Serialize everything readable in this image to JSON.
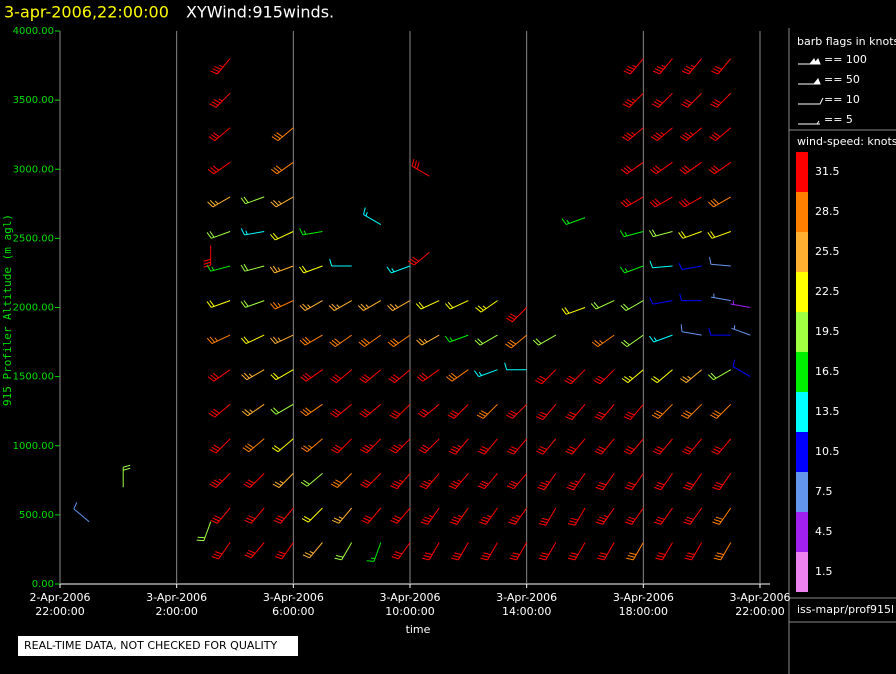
{
  "chart_data": {
    "type": "wind-barb",
    "title": "3-apr-2006,22:00:00",
    "subtitle": "XYWind:915winds.",
    "y_label": "915 Profiler Altitude (m agl)",
    "x_label": "time",
    "note": "REAL-TIME DATA, NOT CHECKED FOR QUALITY",
    "source": "iss-mapr/prof915l",
    "ylim": [
      0,
      4000
    ],
    "yticks": [
      {
        "value": 0,
        "label": "0.00"
      },
      {
        "value": 500,
        "label": "500.00"
      },
      {
        "value": 1000,
        "label": "1000.00"
      },
      {
        "value": 1500,
        "label": "1500.00"
      },
      {
        "value": 2000,
        "label": "2000.00"
      },
      {
        "value": 2500,
        "label": "2500.00"
      },
      {
        "value": 3000,
        "label": "3000.00"
      },
      {
        "value": 3500,
        "label": "3500.00"
      },
      {
        "value": 4000,
        "label": "4000.00"
      }
    ],
    "xlim": [
      "2006-04-02T22:00:00Z",
      "2006-04-03T22:00:00Z"
    ],
    "xticks": [
      {
        "value": "2006-04-02T22:00:00Z",
        "label": [
          "2-Apr-2006",
          "22:00:00"
        ]
      },
      {
        "value": "2006-04-03T02:00:00Z",
        "label": [
          "3-Apr-2006",
          "2:00:00"
        ]
      },
      {
        "value": "2006-04-03T06:00:00Z",
        "label": [
          "3-Apr-2006",
          "6:00:00"
        ]
      },
      {
        "value": "2006-04-03T10:00:00Z",
        "label": [
          "3-Apr-2006",
          "10:00:00"
        ]
      },
      {
        "value": "2006-04-03T14:00:00Z",
        "label": [
          "3-Apr-2006",
          "14:00:00"
        ]
      },
      {
        "value": "2006-04-03T18:00:00Z",
        "label": [
          "3-Apr-2006",
          "18:00:00"
        ]
      },
      {
        "value": "2006-04-03T22:00:00Z",
        "label": [
          "3-Apr-2006",
          "22:00:00"
        ]
      }
    ],
    "grid": true,
    "barb_legend": {
      "title": "barb flags in knots",
      "items": [
        "== 100",
        "== 50",
        "== 10",
        "== 5"
      ]
    },
    "colorbar": {
      "title": "wind-speed: knots",
      "levels": [
        31.5,
        28.5,
        25.5,
        22.5,
        19.5,
        16.5,
        13.5,
        10.5,
        7.5,
        4.5,
        1.5
      ],
      "colors": [
        "#ff0000",
        "#ff8000",
        "#ffb030",
        "#ffff00",
        "#a0ff40",
        "#00ee00",
        "#00ffff",
        "#0000ff",
        "#6495ed",
        "#a020f0",
        "#ee82ee"
      ]
    },
    "profiles": [
      {
        "time": "2006-04-02T23:00:00Z",
        "barbs": [
          [
            450,
            8,
            310
          ]
        ]
      },
      {
        "time": "2006-04-03T00:10:00Z",
        "barbs": [
          [
            700,
            19,
            0
          ]
        ]
      },
      {
        "time": "2006-04-03T03:10:00Z",
        "barbs": [
          [
            450,
            20,
            200
          ],
          [
            2450,
            31,
            180
          ]
        ]
      },
      {
        "time": "2006-04-03T03:50:00Z",
        "barbs": [
          [
            300,
            32,
            215
          ],
          [
            550,
            31,
            220
          ],
          [
            800,
            33,
            225
          ],
          [
            1050,
            31,
            225
          ],
          [
            1300,
            30,
            230
          ],
          [
            1550,
            31,
            235
          ],
          [
            1800,
            27,
            245
          ],
          [
            2050,
            22,
            250
          ],
          [
            2300,
            17,
            255
          ],
          [
            2550,
            20,
            250
          ],
          [
            2800,
            26,
            240
          ],
          [
            3050,
            30,
            235
          ],
          [
            3300,
            32,
            230
          ],
          [
            3550,
            33,
            225
          ],
          [
            3800,
            34,
            220
          ]
        ]
      },
      {
        "time": "2006-04-03T05:00:00Z",
        "barbs": [
          [
            300,
            31,
            220
          ],
          [
            550,
            32,
            220
          ],
          [
            800,
            30,
            225
          ],
          [
            1050,
            28,
            230
          ],
          [
            1300,
            26,
            235
          ],
          [
            1550,
            24,
            240
          ],
          [
            1800,
            22,
            245
          ],
          [
            2050,
            20,
            250
          ],
          [
            2300,
            18,
            255
          ],
          [
            2550,
            14,
            260
          ],
          [
            2800,
            18,
            250
          ]
        ]
      },
      {
        "time": "2006-04-03T06:00:00Z",
        "barbs": [
          [
            300,
            32,
            215
          ],
          [
            550,
            30,
            220
          ],
          [
            800,
            26,
            225
          ],
          [
            1050,
            21,
            230
          ],
          [
            1300,
            18,
            240
          ],
          [
            1550,
            22,
            240
          ],
          [
            1800,
            25,
            245
          ],
          [
            2050,
            27,
            245
          ],
          [
            2300,
            24,
            250
          ],
          [
            2550,
            22,
            245
          ],
          [
            2800,
            26,
            240
          ],
          [
            3050,
            28,
            235
          ],
          [
            3300,
            29,
            230
          ]
        ]
      },
      {
        "time": "2006-04-03T07:00:00Z",
        "barbs": [
          [
            300,
            25,
            220
          ],
          [
            550,
            22,
            225
          ],
          [
            800,
            18,
            230
          ],
          [
            1050,
            27,
            230
          ],
          [
            1300,
            29,
            235
          ],
          [
            1550,
            30,
            235
          ],
          [
            1800,
            28,
            240
          ],
          [
            2050,
            26,
            240
          ],
          [
            2300,
            21,
            250
          ],
          [
            2550,
            16,
            260
          ]
        ]
      },
      {
        "time": "2006-04-03T08:00:00Z",
        "barbs": [
          [
            300,
            20,
            210
          ],
          [
            550,
            26,
            220
          ],
          [
            800,
            29,
            225
          ],
          [
            1050,
            31,
            225
          ],
          [
            1300,
            31,
            230
          ],
          [
            1550,
            30,
            230
          ],
          [
            1800,
            28,
            235
          ],
          [
            2050,
            25,
            240
          ],
          [
            2300,
            12,
            270
          ]
        ]
      },
      {
        "time": "2006-04-03T09:00:00Z",
        "barbs": [
          [
            300,
            16,
            200
          ],
          [
            550,
            31,
            220
          ],
          [
            800,
            32,
            225
          ],
          [
            1050,
            33,
            225
          ],
          [
            1300,
            32,
            230
          ],
          [
            1550,
            31,
            230
          ],
          [
            1800,
            29,
            235
          ],
          [
            2050,
            26,
            240
          ],
          [
            2600,
            13,
            300
          ]
        ]
      },
      {
        "time": "2006-04-03T10:00:00Z",
        "barbs": [
          [
            300,
            31,
            215
          ],
          [
            550,
            32,
            220
          ],
          [
            800,
            33,
            220
          ],
          [
            1050,
            33,
            225
          ],
          [
            1300,
            32,
            225
          ],
          [
            1550,
            31,
            230
          ],
          [
            1800,
            29,
            235
          ],
          [
            2050,
            26,
            240
          ],
          [
            2300,
            14,
            250
          ]
        ]
      },
      {
        "time": "2006-04-03T10:40:00Z",
        "barbs": [
          [
            2400,
            31,
            230
          ],
          [
            2950,
            31,
            300
          ]
        ]
      },
      {
        "time": "2006-04-03T11:00:00Z",
        "barbs": [
          [
            300,
            32,
            210
          ],
          [
            550,
            33,
            215
          ],
          [
            800,
            33,
            220
          ],
          [
            1050,
            32,
            225
          ],
          [
            1300,
            31,
            230
          ],
          [
            1550,
            30,
            235
          ],
          [
            1800,
            26,
            240
          ],
          [
            2050,
            21,
            245
          ]
        ]
      },
      {
        "time": "2006-04-03T12:00:00Z",
        "barbs": [
          [
            300,
            31,
            210
          ],
          [
            550,
            33,
            215
          ],
          [
            800,
            34,
            220
          ],
          [
            1050,
            33,
            220
          ],
          [
            1300,
            32,
            225
          ],
          [
            1550,
            28,
            235
          ],
          [
            1800,
            15,
            250
          ],
          [
            2050,
            22,
            245
          ]
        ]
      },
      {
        "time": "2006-04-03T13:00:00Z",
        "barbs": [
          [
            300,
            31,
            210
          ],
          [
            550,
            33,
            215
          ],
          [
            800,
            32,
            220
          ],
          [
            1050,
            31,
            220
          ],
          [
            1300,
            29,
            225
          ],
          [
            1550,
            14,
            250
          ],
          [
            1800,
            18,
            240
          ],
          [
            2050,
            23,
            235
          ]
        ]
      },
      {
        "time": "2006-04-03T14:00:00Z",
        "barbs": [
          [
            300,
            32,
            210
          ],
          [
            550,
            33,
            215
          ],
          [
            800,
            32,
            220
          ],
          [
            1050,
            32,
            220
          ],
          [
            1300,
            30,
            225
          ],
          [
            1550,
            12,
            270
          ],
          [
            1800,
            29,
            230
          ],
          [
            2000,
            30,
            225
          ]
        ]
      },
      {
        "time": "2006-04-03T15:00:00Z",
        "barbs": [
          [
            300,
            31,
            210
          ],
          [
            550,
            32,
            210
          ],
          [
            800,
            33,
            215
          ],
          [
            1050,
            32,
            220
          ],
          [
            1300,
            31,
            220
          ],
          [
            1550,
            30,
            225
          ],
          [
            1800,
            20,
            240
          ]
        ]
      },
      {
        "time": "2006-04-03T16:00:00Z",
        "barbs": [
          [
            300,
            31,
            210
          ],
          [
            550,
            32,
            210
          ],
          [
            800,
            33,
            215
          ],
          [
            1050,
            31,
            220
          ],
          [
            1300,
            30,
            220
          ],
          [
            1550,
            31,
            225
          ],
          [
            2000,
            22,
            250
          ],
          [
            2650,
            15,
            250
          ]
        ]
      },
      {
        "time": "2006-04-03T17:00:00Z",
        "barbs": [
          [
            300,
            31,
            210
          ],
          [
            550,
            33,
            215
          ],
          [
            800,
            32,
            215
          ],
          [
            1050,
            31,
            220
          ],
          [
            1300,
            31,
            220
          ],
          [
            1550,
            30,
            225
          ],
          [
            1800,
            27,
            235
          ],
          [
            2050,
            20,
            245
          ]
        ]
      },
      {
        "time": "2006-04-03T18:00:00Z",
        "barbs": [
          [
            300,
            28,
            210
          ],
          [
            550,
            31,
            215
          ],
          [
            800,
            32,
            215
          ],
          [
            1050,
            32,
            220
          ],
          [
            1300,
            31,
            220
          ],
          [
            1550,
            23,
            230
          ],
          [
            1800,
            18,
            235
          ],
          [
            2050,
            20,
            240
          ],
          [
            2300,
            15,
            250
          ],
          [
            2550,
            17,
            255
          ],
          [
            2800,
            30,
            240
          ],
          [
            3050,
            32,
            235
          ],
          [
            3300,
            33,
            230
          ],
          [
            3550,
            33,
            225
          ],
          [
            3800,
            34,
            220
          ]
        ]
      },
      {
        "time": "2006-04-03T19:00:00Z",
        "barbs": [
          [
            300,
            31,
            210
          ],
          [
            550,
            32,
            215
          ],
          [
            800,
            32,
            215
          ],
          [
            1050,
            31,
            220
          ],
          [
            1300,
            29,
            225
          ],
          [
            1550,
            22,
            230
          ],
          [
            1800,
            14,
            250
          ],
          [
            2050,
            11,
            260
          ],
          [
            2300,
            12,
            265
          ],
          [
            2550,
            18,
            255
          ],
          [
            2800,
            31,
            240
          ],
          [
            3050,
            32,
            235
          ],
          [
            3300,
            33,
            230
          ],
          [
            3550,
            32,
            225
          ],
          [
            3800,
            33,
            220
          ]
        ]
      },
      {
        "time": "2006-04-03T20:00:00Z",
        "barbs": [
          [
            300,
            31,
            210
          ],
          [
            550,
            30,
            215
          ],
          [
            800,
            31,
            215
          ],
          [
            1050,
            30,
            220
          ],
          [
            1300,
            29,
            225
          ],
          [
            1550,
            25,
            230
          ],
          [
            1800,
            8,
            280
          ],
          [
            2050,
            10,
            270
          ],
          [
            2300,
            9,
            260
          ],
          [
            2550,
            22,
            250
          ],
          [
            2800,
            30,
            240
          ],
          [
            3050,
            32,
            235
          ],
          [
            3300,
            33,
            230
          ],
          [
            3550,
            32,
            225
          ],
          [
            3800,
            33,
            220
          ]
        ]
      },
      {
        "time": "2006-04-03T21:00:00Z",
        "barbs": [
          [
            300,
            28,
            210
          ],
          [
            550,
            29,
            215
          ],
          [
            800,
            30,
            215
          ],
          [
            1050,
            31,
            220
          ],
          [
            1300,
            29,
            225
          ],
          [
            1550,
            20,
            240
          ],
          [
            1800,
            9,
            270
          ],
          [
            2050,
            6,
            280
          ],
          [
            2300,
            8,
            275
          ],
          [
            2550,
            21,
            250
          ],
          [
            2800,
            29,
            240
          ],
          [
            3050,
            31,
            235
          ],
          [
            3300,
            32,
            230
          ],
          [
            3550,
            31,
            225
          ],
          [
            3800,
            32,
            220
          ]
        ]
      },
      {
        "time": "2006-04-03T21:40:00Z",
        "barbs": [
          [
            1500,
            9,
            300
          ],
          [
            1800,
            6,
            290
          ],
          [
            2000,
            5,
            280
          ]
        ]
      }
    ]
  }
}
